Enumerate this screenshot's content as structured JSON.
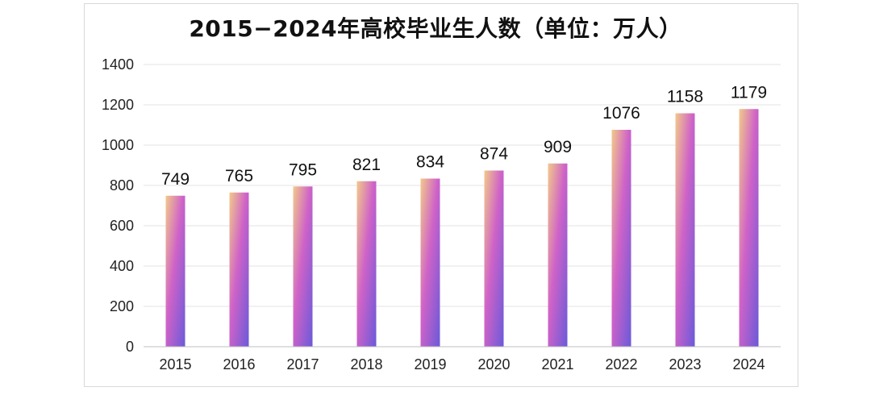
{
  "chart_data": {
    "type": "bar",
    "title": "2015−2024年高校毕业生人数（单位：万人）",
    "categories": [
      "2015",
      "2016",
      "2017",
      "2018",
      "2019",
      "2020",
      "2021",
      "2022",
      "2023",
      "2024"
    ],
    "values": [
      749,
      765,
      795,
      821,
      834,
      874,
      909,
      1076,
      1158,
      1179
    ],
    "yticks": [
      0,
      200,
      400,
      600,
      800,
      1000,
      1200,
      1400
    ],
    "ylim": [
      0,
      1400
    ],
    "xlabel": "",
    "ylabel": "",
    "grid": true,
    "legend": "none",
    "data_labels": true,
    "colors": {
      "bar_top": "#f2c98a",
      "bar_mid": "#cf62c8",
      "bar_bottom": "#6a5ad9",
      "grid": "#e3e3e3",
      "axis": "#bfbfbf"
    }
  }
}
